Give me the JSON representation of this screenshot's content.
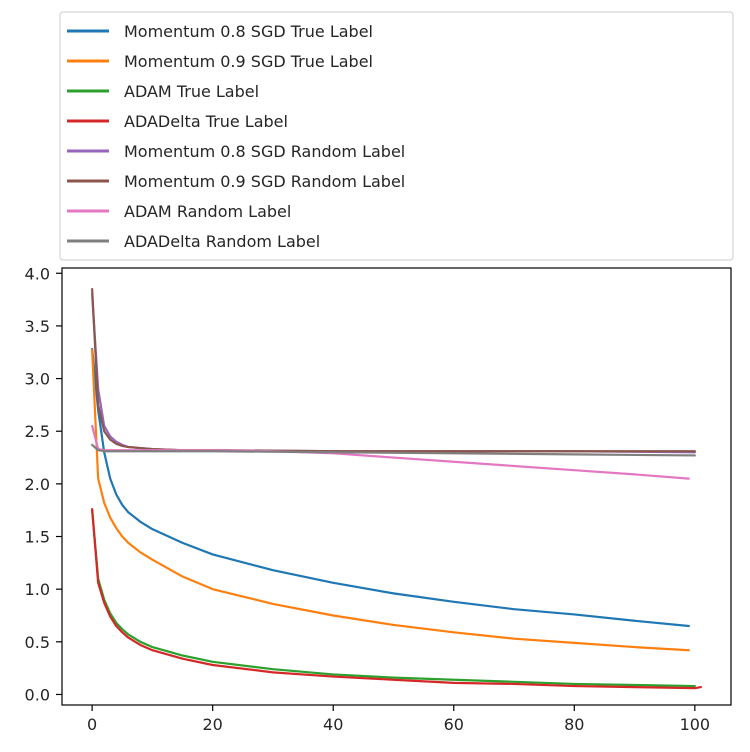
{
  "chart_data": {
    "type": "line",
    "title": "",
    "xlabel": "",
    "ylabel": "",
    "xlim": [
      -5,
      106
    ],
    "ylim": [
      -0.1,
      4.05
    ],
    "xticks": [
      0,
      20,
      40,
      60,
      80,
      100
    ],
    "yticks": [
      0.0,
      0.5,
      1.0,
      1.5,
      2.0,
      2.5,
      3.0,
      3.5,
      4.0
    ],
    "xtick_labels": [
      "0",
      "20",
      "40",
      "60",
      "80",
      "100"
    ],
    "ytick_labels": [
      "0.0",
      "0.5",
      "1.0",
      "1.5",
      "2.0",
      "2.5",
      "3.0",
      "3.5",
      "4.0"
    ],
    "legend_position": "above plot",
    "grid": false,
    "series": [
      {
        "name": "Momentum 0.8 SGD True Label",
        "color": "#1f77b4",
        "x": [
          0,
          1,
          2,
          3,
          4,
          5,
          6,
          8,
          10,
          15,
          20,
          30,
          40,
          50,
          60,
          70,
          80,
          90,
          99
        ],
        "y": [
          3.28,
          2.7,
          2.3,
          2.05,
          1.9,
          1.8,
          1.73,
          1.64,
          1.57,
          1.44,
          1.33,
          1.18,
          1.06,
          0.96,
          0.88,
          0.81,
          0.76,
          0.7,
          0.65
        ]
      },
      {
        "name": "Momentum 0.9 SGD True Label",
        "color": "#ff7f0e",
        "x": [
          0,
          1,
          2,
          3,
          4,
          5,
          6,
          8,
          10,
          15,
          20,
          30,
          40,
          50,
          60,
          70,
          80,
          90,
          99
        ],
        "y": [
          3.27,
          2.05,
          1.82,
          1.68,
          1.58,
          1.5,
          1.44,
          1.35,
          1.28,
          1.12,
          1.0,
          0.86,
          0.75,
          0.66,
          0.59,
          0.53,
          0.49,
          0.45,
          0.42
        ]
      },
      {
        "name": "ADAM True Label",
        "color": "#2ca02c",
        "x": [
          0,
          1,
          2,
          3,
          4,
          5,
          6,
          8,
          10,
          15,
          20,
          30,
          40,
          50,
          60,
          70,
          80,
          90,
          100
        ],
        "y": [
          1.75,
          1.1,
          0.9,
          0.77,
          0.68,
          0.62,
          0.57,
          0.5,
          0.45,
          0.37,
          0.31,
          0.24,
          0.19,
          0.16,
          0.14,
          0.12,
          0.1,
          0.09,
          0.08
        ]
      },
      {
        "name": "ADADelta True Label",
        "color": "#d62728",
        "x": [
          0,
          1,
          2,
          3,
          4,
          5,
          6,
          8,
          10,
          15,
          20,
          30,
          40,
          50,
          60,
          70,
          80,
          90,
          100,
          101
        ],
        "y": [
          1.76,
          1.06,
          0.87,
          0.74,
          0.65,
          0.59,
          0.54,
          0.47,
          0.42,
          0.34,
          0.28,
          0.21,
          0.17,
          0.14,
          0.11,
          0.1,
          0.08,
          0.07,
          0.06,
          0.07
        ]
      },
      {
        "name": "Momentum 0.8 SGD Random Label",
        "color": "#9467bd",
        "x": [
          0,
          1,
          2,
          3,
          4,
          5,
          6,
          8,
          10,
          15,
          20,
          40,
          60,
          80,
          100
        ],
        "y": [
          3.8,
          2.9,
          2.55,
          2.45,
          2.4,
          2.37,
          2.35,
          2.34,
          2.33,
          2.32,
          2.32,
          2.31,
          2.31,
          2.31,
          2.3
        ]
      },
      {
        "name": "Momentum 0.9 SGD Random Label",
        "color": "#8c564b",
        "x": [
          0,
          1,
          2,
          3,
          4,
          5,
          6,
          8,
          10,
          15,
          20,
          40,
          60,
          80,
          100
        ],
        "y": [
          3.85,
          2.75,
          2.5,
          2.42,
          2.38,
          2.36,
          2.35,
          2.34,
          2.33,
          2.32,
          2.32,
          2.31,
          2.31,
          2.31,
          2.31
        ]
      },
      {
        "name": "ADAM Random Label",
        "color": "#e377c2",
        "x": [
          0,
          1,
          2,
          5,
          10,
          20,
          30,
          40,
          50,
          60,
          70,
          80,
          90,
          99
        ],
        "y": [
          2.55,
          2.33,
          2.32,
          2.32,
          2.32,
          2.32,
          2.31,
          2.29,
          2.25,
          2.21,
          2.17,
          2.13,
          2.09,
          2.05
        ]
      },
      {
        "name": "ADADelta Random Label",
        "color": "#7f7f7f",
        "x": [
          0,
          1,
          2,
          5,
          10,
          20,
          40,
          60,
          80,
          100
        ],
        "y": [
          2.37,
          2.32,
          2.31,
          2.31,
          2.31,
          2.31,
          2.3,
          2.29,
          2.28,
          2.27
        ]
      }
    ]
  }
}
